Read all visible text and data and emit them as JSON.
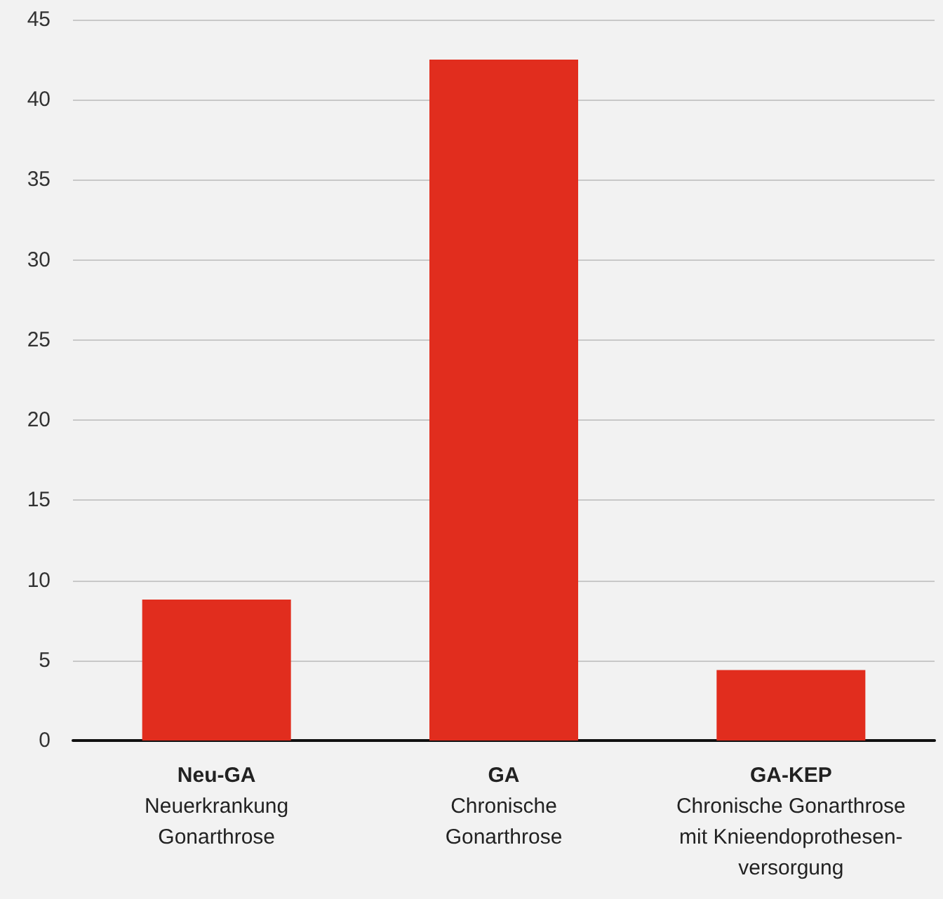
{
  "chart_data": {
    "type": "bar",
    "categories": [
      "Neu-GA\nNeuerkrankung\nGonarthrose",
      "GA\nChronische\nGonarthrose",
      "GA-KEP\nChronische Gonarthrose\nmit Knieendoprothesen-\nversorgung"
    ],
    "values": [
      8.8,
      42.5,
      4.4
    ],
    "color": "#e12d1e",
    "ylim": [
      0,
      45
    ],
    "yticks": [
      0,
      5,
      10,
      15,
      20,
      25,
      30,
      35,
      40,
      45
    ],
    "grid": "y"
  }
}
